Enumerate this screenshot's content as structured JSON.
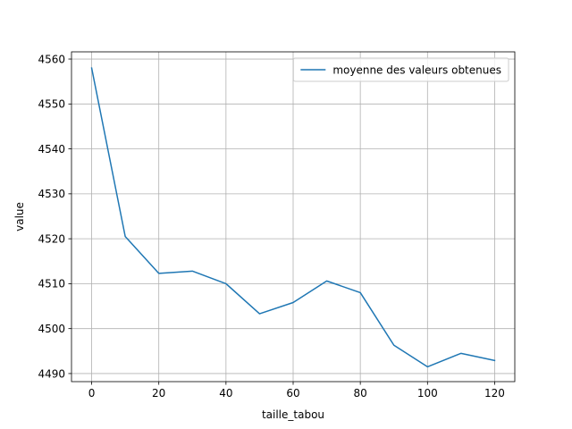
{
  "chart_data": {
    "type": "line",
    "title": "",
    "xlabel": "taille_tabou",
    "ylabel": "value",
    "xlim": [
      -6,
      126
    ],
    "ylim": [
      4488.2,
      4561.6
    ],
    "x_ticks": [
      0,
      20,
      40,
      60,
      80,
      100,
      120
    ],
    "y_ticks": [
      4490,
      4500,
      4510,
      4520,
      4530,
      4540,
      4550,
      4560
    ],
    "grid": true,
    "legend_position": "top-right",
    "x": [
      0,
      10,
      20,
      30,
      40,
      50,
      60,
      70,
      80,
      90,
      100,
      110,
      120
    ],
    "series": [
      {
        "name": "moyenne des valeurs obtenues",
        "color": "#1f77b4",
        "values": [
          4558.0,
          4520.5,
          4512.3,
          4512.8,
          4510.0,
          4503.3,
          4505.8,
          4510.6,
          4508.0,
          4496.3,
          4491.5,
          4494.5,
          4492.9
        ]
      }
    ]
  }
}
